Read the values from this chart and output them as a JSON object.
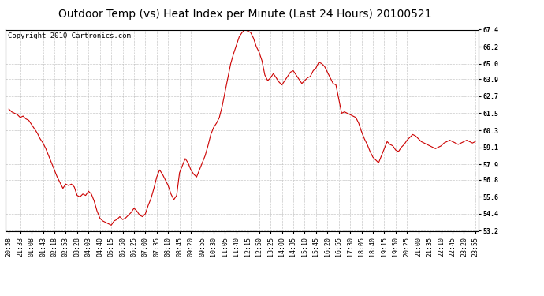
{
  "title": "Outdoor Temp (vs) Heat Index per Minute (Last 24 Hours) 20100521",
  "copyright": "Copyright 2010 Cartronics.com",
  "line_color": "#cc0000",
  "background_color": "#ffffff",
  "plot_bg_color": "#ffffff",
  "grid_color": "#bbbbbb",
  "ylim": [
    53.2,
    67.4
  ],
  "yticks": [
    53.2,
    54.4,
    55.6,
    56.8,
    57.9,
    59.1,
    60.3,
    61.5,
    62.7,
    63.9,
    65.0,
    66.2,
    67.4
  ],
  "xtick_labels": [
    "20:58",
    "21:33",
    "01:08",
    "01:43",
    "02:18",
    "02:53",
    "03:28",
    "04:03",
    "04:40",
    "05:15",
    "05:50",
    "06:25",
    "07:00",
    "07:35",
    "08:10",
    "08:45",
    "09:20",
    "09:55",
    "10:30",
    "11:05",
    "11:40",
    "12:15",
    "12:50",
    "13:25",
    "14:00",
    "14:35",
    "15:10",
    "15:45",
    "16:20",
    "16:55",
    "17:30",
    "18:05",
    "18:40",
    "19:15",
    "19:50",
    "20:25",
    "21:00",
    "21:35",
    "22:10",
    "22:45",
    "23:20",
    "23:55"
  ],
  "y_values": [
    61.8,
    61.6,
    61.5,
    61.4,
    61.2,
    61.3,
    61.1,
    61.0,
    60.7,
    60.4,
    60.1,
    59.7,
    59.4,
    59.0,
    58.5,
    58.0,
    57.5,
    57.0,
    56.6,
    56.2,
    56.5,
    56.4,
    56.5,
    56.3,
    55.7,
    55.6,
    55.8,
    55.7,
    56.0,
    55.8,
    55.3,
    54.6,
    54.1,
    53.9,
    53.8,
    53.7,
    53.6,
    53.9,
    54.0,
    54.2,
    54.0,
    54.1,
    54.3,
    54.5,
    54.8,
    54.6,
    54.3,
    54.2,
    54.4,
    55.0,
    55.5,
    56.2,
    57.0,
    57.5,
    57.2,
    56.8,
    56.4,
    55.8,
    55.4,
    55.7,
    57.3,
    57.8,
    58.3,
    58.0,
    57.5,
    57.2,
    57.0,
    57.5,
    58.0,
    58.5,
    59.2,
    60.0,
    60.5,
    60.8,
    61.2,
    62.0,
    63.0,
    64.0,
    65.0,
    65.7,
    66.3,
    66.9,
    67.2,
    67.4,
    67.3,
    67.2,
    66.8,
    66.2,
    65.8,
    65.2,
    64.2,
    63.8,
    64.0,
    64.3,
    64.0,
    63.7,
    63.5,
    63.8,
    64.1,
    64.4,
    64.5,
    64.2,
    63.9,
    63.6,
    63.8,
    64.0,
    64.1,
    64.5,
    64.7,
    65.1,
    65.0,
    64.8,
    64.4,
    64.0,
    63.6,
    63.5,
    62.5,
    61.5,
    61.6,
    61.5,
    61.4,
    61.3,
    61.2,
    60.8,
    60.2,
    59.7,
    59.3,
    58.8,
    58.4,
    58.2,
    58.0,
    58.5,
    59.0,
    59.5,
    59.3,
    59.2,
    58.9,
    58.8,
    59.1,
    59.3,
    59.6,
    59.8,
    60.0,
    59.9,
    59.7,
    59.5,
    59.4,
    59.3,
    59.2,
    59.1,
    59.0,
    59.1,
    59.2,
    59.4,
    59.5,
    59.6,
    59.5,
    59.4,
    59.3,
    59.4,
    59.5,
    59.6,
    59.5,
    59.4,
    59.5
  ],
  "title_fontsize": 10,
  "tick_fontsize": 6,
  "copyright_fontsize": 6.5
}
